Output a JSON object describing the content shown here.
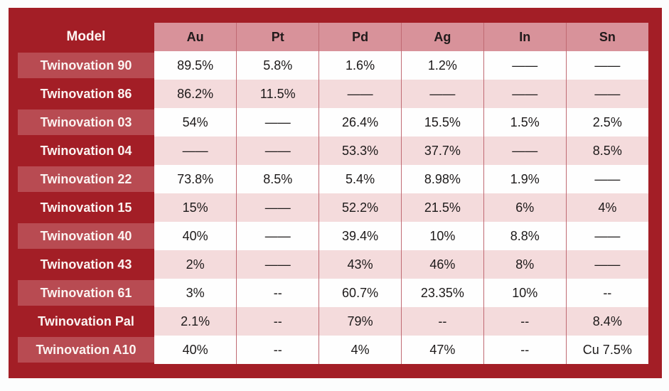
{
  "colors": {
    "border_red": "#a31e26",
    "label_light_red": "#b84b52",
    "header_pink": "#d8929a",
    "row_pink": "#f4dbdc",
    "row_white": "#fefefe",
    "separator": "#c06a73",
    "header_text": "#211a1b",
    "label_text": "#fbf3f1",
    "data_text": "#1d1a1a"
  },
  "chart_data": {
    "type": "table",
    "title": "",
    "columns": [
      "Model",
      "Au",
      "Pt",
      "Pd",
      "Ag",
      "In",
      "Sn"
    ],
    "rows": [
      {
        "model": "Twinovation 90",
        "values": [
          "89.5%",
          "5.8%",
          "1.6%",
          "1.2%",
          "——",
          "——"
        ]
      },
      {
        "model": "Twinovation 86",
        "values": [
          "86.2%",
          "11.5%",
          "——",
          "——",
          "——",
          "——"
        ]
      },
      {
        "model": "Twinovation 03",
        "values": [
          "54%",
          "——",
          "26.4%",
          "15.5%",
          "1.5%",
          "2.5%"
        ]
      },
      {
        "model": "Twinovation 04",
        "values": [
          "——",
          "——",
          "53.3%",
          "37.7%",
          "——",
          "8.5%"
        ]
      },
      {
        "model": "Twinovation 22",
        "values": [
          "73.8%",
          "8.5%",
          "5.4%",
          "8.98%",
          "1.9%",
          "——"
        ]
      },
      {
        "model": "Twinovation 15",
        "values": [
          "15%",
          "——",
          "52.2%",
          "21.5%",
          "6%",
          "4%"
        ]
      },
      {
        "model": "Twinovation 40",
        "values": [
          "40%",
          "——",
          "39.4%",
          "10%",
          "8.8%",
          "——"
        ]
      },
      {
        "model": "Twinovation 43",
        "values": [
          "2%",
          "——",
          "43%",
          "46%",
          "8%",
          "——"
        ]
      },
      {
        "model": "Twinovation 61",
        "values": [
          "3%",
          "--",
          "60.7%",
          "23.35%",
          "10%",
          "--"
        ]
      },
      {
        "model": "Twinovation Pal",
        "values": [
          "2.1%",
          "--",
          "79%",
          "--",
          "--",
          "8.4%"
        ]
      },
      {
        "model": "Twinovation A10",
        "values": [
          "40%",
          "--",
          "4%",
          "47%",
          "--",
          "Cu 7.5%"
        ]
      }
    ],
    "layout": {
      "striped": true,
      "stripe_pattern": "white-pink alternating, starting white",
      "label_column_pattern": "light-red / dark-red alternating, starting light"
    }
  }
}
